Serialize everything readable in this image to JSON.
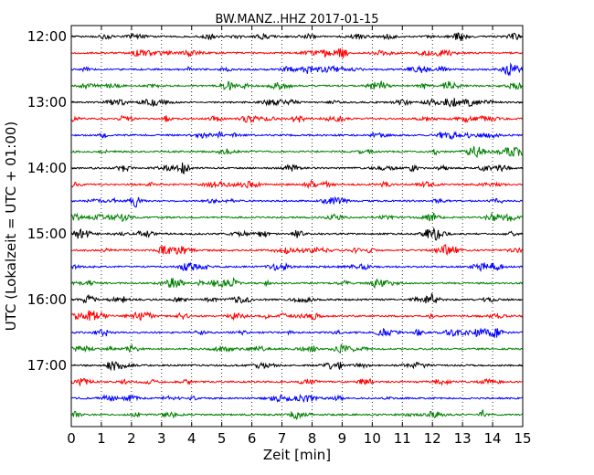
{
  "chart_data": {
    "type": "line",
    "title": "BW.MANZ..HHZ 2017-01-15",
    "xlabel": "Zeit  [min]",
    "ylabel": "UTC (Lokalzeit = UTC + 01:00)",
    "xlim": [
      0,
      15
    ],
    "x_ticks": [
      0,
      1,
      2,
      3,
      4,
      5,
      6,
      7,
      8,
      9,
      10,
      11,
      12,
      13,
      14,
      15
    ],
    "x_tick_labels": [
      "0",
      "1",
      "2",
      "3",
      "4",
      "5",
      "6",
      "7",
      "8",
      "9",
      "10",
      "11",
      "12",
      "13",
      "14",
      "15"
    ],
    "y_ticks": [
      "12:00",
      "13:00",
      "14:00",
      "15:00",
      "16:00",
      "17:00"
    ],
    "vertical_grid": true,
    "grid_style": "dotted",
    "rows_per_hour": 4,
    "row_minutes": 15,
    "row_count": 24,
    "colors": [
      "#000000",
      "#ff0000",
      "#0000ff",
      "#008000"
    ],
    "series": [
      {
        "start": "12:00",
        "color": "#000000"
      },
      {
        "start": "12:15",
        "color": "#ff0000"
      },
      {
        "start": "12:30",
        "color": "#0000ff"
      },
      {
        "start": "12:45",
        "color": "#008000"
      },
      {
        "start": "13:00",
        "color": "#000000"
      },
      {
        "start": "13:15",
        "color": "#ff0000"
      },
      {
        "start": "13:30",
        "color": "#0000ff"
      },
      {
        "start": "13:45",
        "color": "#008000"
      },
      {
        "start": "14:00",
        "color": "#000000"
      },
      {
        "start": "14:15",
        "color": "#ff0000"
      },
      {
        "start": "14:30",
        "color": "#0000ff"
      },
      {
        "start": "14:45",
        "color": "#008000"
      },
      {
        "start": "15:00",
        "color": "#000000"
      },
      {
        "start": "15:15",
        "color": "#ff0000"
      },
      {
        "start": "15:30",
        "color": "#0000ff"
      },
      {
        "start": "15:45",
        "color": "#008000"
      },
      {
        "start": "16:00",
        "color": "#000000"
      },
      {
        "start": "16:15",
        "color": "#ff0000"
      },
      {
        "start": "16:30",
        "color": "#0000ff"
      },
      {
        "start": "16:45",
        "color": "#008000"
      },
      {
        "start": "17:00",
        "color": "#000000"
      },
      {
        "start": "17:15",
        "color": "#ff0000"
      },
      {
        "start": "17:30",
        "color": "#0000ff"
      },
      {
        "start": "17:45",
        "color": "#008000"
      }
    ]
  }
}
